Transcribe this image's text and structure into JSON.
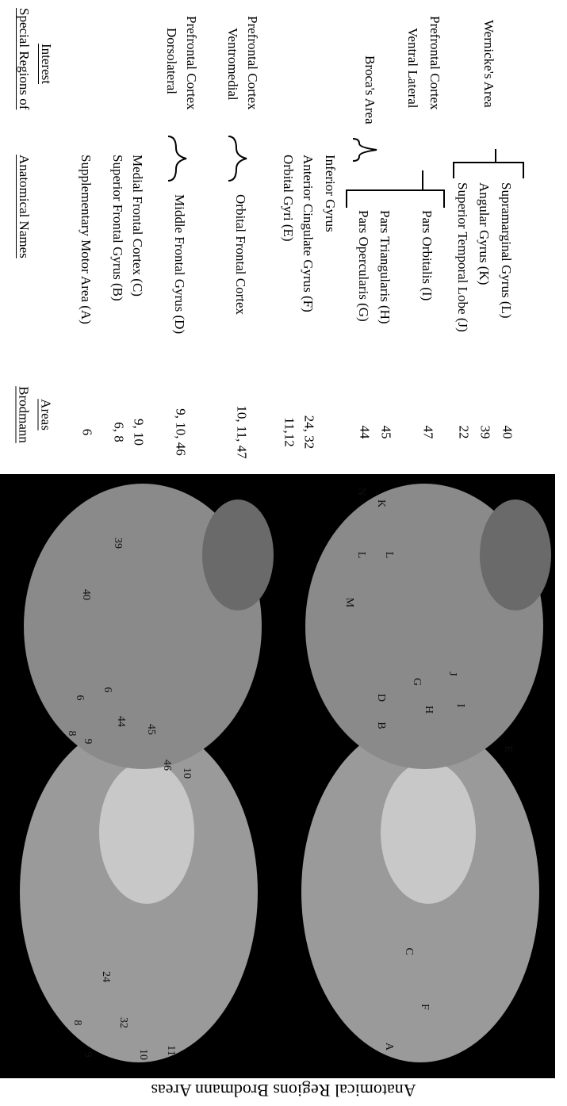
{
  "header": {
    "special": [
      "Special Regions of",
      "Interest"
    ],
    "names": "Anatomical Names",
    "brodmann": [
      "Brodmann",
      "Areas"
    ]
  },
  "rows": [
    {
      "areas": "6",
      "name": "Supplementary Motor Area (A)"
    },
    {
      "areas": "6, 8",
      "name": "Superior Frontal Gyrus (B)"
    },
    {
      "areas": "9, 10",
      "name": "Medial Frontal Cortex  (C)"
    },
    {
      "areas": "9, 10, 46",
      "name": "Middle Frontal Gyrus (D)"
    },
    {
      "areas": "10, 11, 47",
      "name": "Orbital Frontal Cortex"
    },
    {
      "areas": "11,12",
      "name": "Orbital Gyri (E)"
    },
    {
      "areas": "24, 32",
      "name": "Anterior Cingulate Gyrus (F)"
    },
    {
      "name": "Inferior Gyrus"
    },
    {
      "areas": "44",
      "name": "Pars Opercularis (G)"
    },
    {
      "areas": "45",
      "name": "Pars Triangularis (H)"
    },
    {
      "areas": "47",
      "name": "Pars Orbitalis (I)"
    },
    {
      "areas": "22",
      "name": "Superior Temporal Lobe (J)"
    },
    {
      "areas": "39",
      "name": "Angular Gyrus (K)"
    },
    {
      "areas": "40",
      "name": "Supramarginal Gyrus (L)"
    }
  ],
  "regions": [
    {
      "lines": [
        "Dorsolateral",
        "Prefrontal Cortex"
      ]
    },
    {
      "lines": [
        "Ventromedial",
        "Prefrontal Cortex"
      ]
    },
    {
      "lines": [
        "Broca's Area"
      ]
    },
    {
      "lines": [
        "Ventral Lateral",
        "Prefrontal Cortex"
      ]
    },
    {
      "lines": [
        "Wernicke's Area"
      ]
    }
  ],
  "brain_labels": {
    "medial_top": [
      "8",
      "24",
      "9",
      "32",
      "10",
      "11"
    ],
    "lateral_top": [
      "6",
      "6",
      "8",
      "9",
      "44",
      "45",
      "46",
      "10",
      "40",
      "39"
    ],
    "medial_bottom": [
      "A",
      "C",
      "F"
    ],
    "lateral_bottom": [
      "N",
      "K",
      "M",
      "L",
      "L",
      "D",
      "G",
      "J",
      "B",
      "H",
      "I",
      "E"
    ]
  },
  "caption": "Anatomical Regions Brodmann Areas"
}
